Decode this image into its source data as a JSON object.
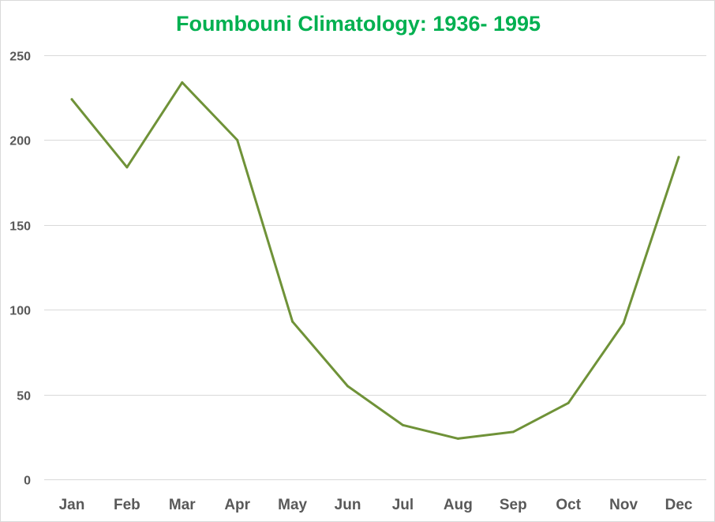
{
  "chart_data": {
    "type": "line",
    "title": "Foumbouni Climatology: 1936- 1995",
    "xlabel": "",
    "ylabel": "",
    "categories": [
      "Jan",
      "Feb",
      "Mar",
      "Apr",
      "May",
      "Jun",
      "Jul",
      "Aug",
      "Sep",
      "Oct",
      "Nov",
      "Dec"
    ],
    "series": [
      {
        "values": [
          224,
          184,
          234,
          200,
          93,
          55,
          32,
          24,
          28,
          45,
          92,
          190
        ]
      }
    ],
    "ylim": [
      0,
      250
    ],
    "yticks": [
      "0",
      "50",
      "100",
      "150",
      "200",
      "250"
    ],
    "grid": true,
    "legend": "none",
    "colors": {
      "title": "#00b050",
      "line": "#6f9238",
      "grid": "#d9d9d9",
      "ticks": "#595959"
    }
  }
}
